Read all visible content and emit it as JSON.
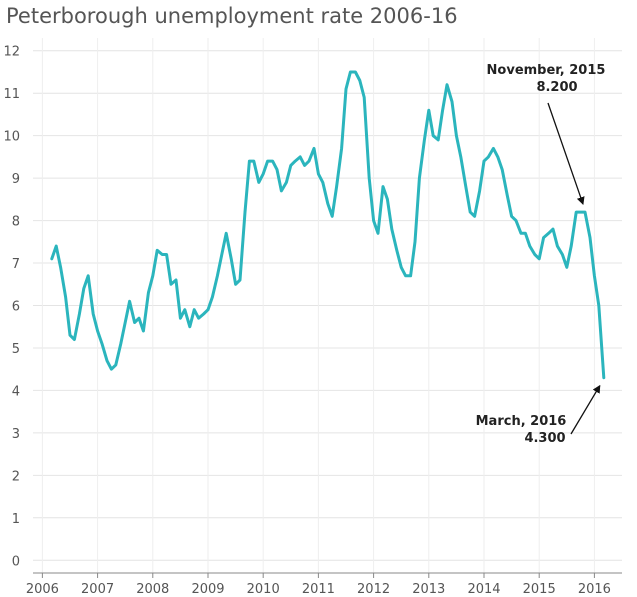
{
  "chart_data": {
    "type": "line",
    "title": "Peterborough unemployment rate 2006-16",
    "xlabel": "",
    "ylabel": "",
    "xlim": [
      2005.83,
      2016.5
    ],
    "ylim": [
      -0.3,
      12.3
    ],
    "grid": true,
    "x_ticks": [
      2006,
      2007,
      2008,
      2009,
      2010,
      2011,
      2012,
      2013,
      2014,
      2015,
      2016
    ],
    "y_ticks": [
      0,
      1,
      2,
      3,
      4,
      5,
      6,
      7,
      8,
      9,
      10,
      11,
      12
    ],
    "line_color": "#2bb5bd",
    "series": [
      {
        "name": "",
        "x": [
          2006.17,
          2006.25,
          2006.33,
          2006.42,
          2006.5,
          2006.58,
          2006.67,
          2006.75,
          2006.83,
          2006.92,
          2007.0,
          2007.08,
          2007.17,
          2007.25,
          2007.33,
          2007.42,
          2007.5,
          2007.58,
          2007.67,
          2007.75,
          2007.83,
          2007.92,
          2008.0,
          2008.08,
          2008.17,
          2008.25,
          2008.33,
          2008.42,
          2008.5,
          2008.58,
          2008.67,
          2008.75,
          2008.83,
          2008.92,
          2009.0,
          2009.08,
          2009.17,
          2009.25,
          2009.33,
          2009.42,
          2009.5,
          2009.58,
          2009.67,
          2009.75,
          2009.83,
          2009.92,
          2010.0,
          2010.08,
          2010.17,
          2010.25,
          2010.33,
          2010.42,
          2010.5,
          2010.58,
          2010.67,
          2010.75,
          2010.83,
          2010.92,
          2011.0,
          2011.08,
          2011.17,
          2011.25,
          2011.33,
          2011.42,
          2011.5,
          2011.58,
          2011.67,
          2011.75,
          2011.83,
          2011.92,
          2012.0,
          2012.08,
          2012.17,
          2012.25,
          2012.33,
          2012.42,
          2012.5,
          2012.58,
          2012.67,
          2012.75,
          2012.83,
          2012.92,
          2013.0,
          2013.08,
          2013.17,
          2013.25,
          2013.33,
          2013.42,
          2013.5,
          2013.58,
          2013.67,
          2013.75,
          2013.83,
          2013.92,
          2014.0,
          2014.08,
          2014.17,
          2014.25,
          2014.33,
          2014.42,
          2014.5,
          2014.58,
          2014.67,
          2014.75,
          2014.83,
          2014.92,
          2015.0,
          2015.08,
          2015.17,
          2015.25,
          2015.33,
          2015.42,
          2015.5,
          2015.58,
          2015.67,
          2015.75,
          2015.83,
          2015.92,
          2016.0,
          2016.08,
          2016.17
        ],
        "values": [
          7.1,
          7.4,
          6.9,
          6.2,
          5.3,
          5.2,
          5.8,
          6.4,
          6.7,
          5.8,
          5.4,
          5.1,
          4.7,
          4.5,
          4.6,
          5.1,
          5.6,
          6.1,
          5.6,
          5.7,
          5.4,
          6.3,
          6.7,
          7.3,
          7.2,
          7.2,
          6.5,
          6.6,
          5.7,
          5.9,
          5.5,
          5.9,
          5.7,
          5.8,
          5.9,
          6.2,
          6.7,
          7.2,
          7.7,
          7.1,
          6.5,
          6.6,
          8.2,
          9.4,
          9.4,
          8.9,
          9.1,
          9.4,
          9.4,
          9.2,
          8.7,
          8.9,
          9.3,
          9.4,
          9.5,
          9.3,
          9.4,
          9.7,
          9.1,
          8.9,
          8.4,
          8.1,
          8.8,
          9.7,
          11.1,
          11.5,
          11.5,
          11.3,
          10.9,
          9.0,
          8.0,
          7.7,
          8.8,
          8.5,
          7.8,
          7.3,
          6.9,
          6.7,
          6.7,
          7.5,
          9.0,
          9.9,
          10.6,
          10.0,
          9.9,
          10.6,
          11.2,
          10.8,
          10.0,
          9.5,
          8.8,
          8.2,
          8.1,
          8.7,
          9.4,
          9.5,
          9.7,
          9.5,
          9.2,
          8.6,
          8.1,
          8.0,
          7.7,
          7.7,
          7.4,
          7.2,
          7.1,
          7.6,
          7.7,
          7.8,
          7.4,
          7.2,
          6.9,
          7.4,
          8.2,
          8.2,
          8.2,
          7.6,
          6.7,
          6.0,
          4.3
        ]
      }
    ],
    "annotations": [
      {
        "label": "November, 2015",
        "value": "8.200",
        "x": 2015.83,
        "y": 8.2
      },
      {
        "label": "March, 2016",
        "value": "4.300",
        "x": 2016.17,
        "y": 4.3
      }
    ]
  }
}
